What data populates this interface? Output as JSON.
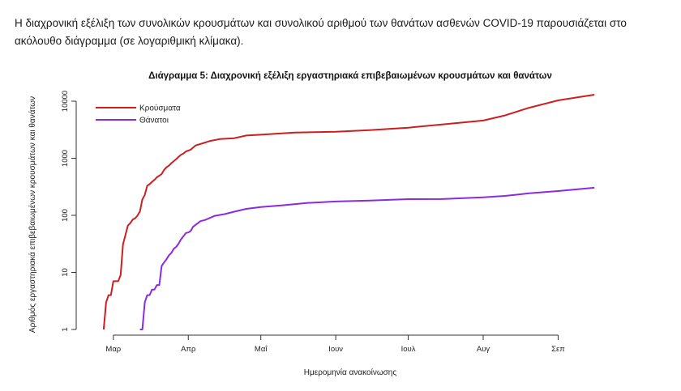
{
  "intro_text": "Η διαχρονική εξέλιξη των συνολικών κρουσμάτων και συνολικού αριθμού των θανάτων ασθενών COVID-19 παρουσιάζεται στο ακόλουθο διάγραμμα (σε λογαριθμική κλίμακα).",
  "colors": {
    "cases": "#cc1f1f",
    "deaths": "#8a2be2",
    "axis": "#333333"
  },
  "chart_data": {
    "type": "line",
    "title": "Διάγραμμα 5: Διαχρονική εξέλιξη εργαστηριακά επιβεβαιωμένων κρουσμάτων και θανάτων",
    "xlabel": "Ημερομηνία ανακοίνωσης",
    "ylabel": "Αριθμός εργαστηριακά επιβεβαιωμένων κρουσμάτων και θανάτων",
    "y_scale": "log",
    "ylim": [
      1,
      10000
    ],
    "y_ticks": [
      1,
      10,
      100,
      1000,
      10000
    ],
    "y_tick_labels": [
      "1",
      "10",
      "100",
      "1000",
      "10000"
    ],
    "x_ticks": [
      "2020-03-01",
      "2020-04-01",
      "2020-05-01",
      "2020-06-01",
      "2020-07-01",
      "2020-08-01",
      "2020-09-01"
    ],
    "x_tick_labels": [
      "Μαρ",
      "Απρ",
      "Μαΐ",
      "Ιουν",
      "Ιουλ",
      "Αυγ",
      "Σεπ"
    ],
    "xlim": [
      "2020-02-20",
      "2020-09-25"
    ],
    "legend_position": "top-left",
    "series": [
      {
        "name": "Κρούσματα",
        "color": "#cc1f1f",
        "points": [
          [
            "2020-02-26",
            1
          ],
          [
            "2020-02-27",
            3
          ],
          [
            "2020-02-28",
            4
          ],
          [
            "2020-02-29",
            4
          ],
          [
            "2020-03-01",
            7
          ],
          [
            "2020-03-03",
            7
          ],
          [
            "2020-03-04",
            9
          ],
          [
            "2020-03-05",
            31
          ],
          [
            "2020-03-06",
            45
          ],
          [
            "2020-03-07",
            66
          ],
          [
            "2020-03-08",
            73
          ],
          [
            "2020-03-09",
            84
          ],
          [
            "2020-03-10",
            89
          ],
          [
            "2020-03-11",
            99
          ],
          [
            "2020-03-12",
            117
          ],
          [
            "2020-03-13",
            190
          ],
          [
            "2020-03-14",
            228
          ],
          [
            "2020-03-15",
            331
          ],
          [
            "2020-03-16",
            352
          ],
          [
            "2020-03-17",
            387
          ],
          [
            "2020-03-18",
            418
          ],
          [
            "2020-03-19",
            464
          ],
          [
            "2020-03-20",
            495
          ],
          [
            "2020-03-21",
            530
          ],
          [
            "2020-03-22",
            624
          ],
          [
            "2020-03-23",
            695
          ],
          [
            "2020-03-24",
            743
          ],
          [
            "2020-03-25",
            821
          ],
          [
            "2020-03-26",
            892
          ],
          [
            "2020-03-27",
            966
          ],
          [
            "2020-03-28",
            1061
          ],
          [
            "2020-03-29",
            1156
          ],
          [
            "2020-03-30",
            1212
          ],
          [
            "2020-03-31",
            1314
          ],
          [
            "2020-04-02",
            1415
          ],
          [
            "2020-04-04",
            1673
          ],
          [
            "2020-04-07",
            1832
          ],
          [
            "2020-04-10",
            2011
          ],
          [
            "2020-04-14",
            2170
          ],
          [
            "2020-04-20",
            2245
          ],
          [
            "2020-04-25",
            2506
          ],
          [
            "2020-05-01",
            2591
          ],
          [
            "2020-05-15",
            2819
          ],
          [
            "2020-06-01",
            2917
          ],
          [
            "2020-06-15",
            3121
          ],
          [
            "2020-07-01",
            3432
          ],
          [
            "2020-07-15",
            3910
          ],
          [
            "2020-08-01",
            4587
          ],
          [
            "2020-08-10",
            5623
          ],
          [
            "2020-08-20",
            7684
          ],
          [
            "2020-09-01",
            10317
          ],
          [
            "2020-09-10",
            11832
          ],
          [
            "2020-09-16",
            13000
          ]
        ]
      },
      {
        "name": "Θάνατοι",
        "color": "#8a2be2",
        "points": [
          [
            "2020-03-12",
            1
          ],
          [
            "2020-03-13",
            1
          ],
          [
            "2020-03-14",
            3
          ],
          [
            "2020-03-15",
            4
          ],
          [
            "2020-03-16",
            4
          ],
          [
            "2020-03-17",
            5
          ],
          [
            "2020-03-18",
            5
          ],
          [
            "2020-03-19",
            6
          ],
          [
            "2020-03-20",
            6
          ],
          [
            "2020-03-21",
            13
          ],
          [
            "2020-03-22",
            15
          ],
          [
            "2020-03-23",
            17
          ],
          [
            "2020-03-24",
            20
          ],
          [
            "2020-03-25",
            22
          ],
          [
            "2020-03-26",
            26
          ],
          [
            "2020-03-27",
            28
          ],
          [
            "2020-03-28",
            32
          ],
          [
            "2020-03-29",
            38
          ],
          [
            "2020-03-30",
            43
          ],
          [
            "2020-03-31",
            49
          ],
          [
            "2020-04-01",
            50
          ],
          [
            "2020-04-02",
            53
          ],
          [
            "2020-04-03",
            63
          ],
          [
            "2020-04-04",
            68
          ],
          [
            "2020-04-05",
            73
          ],
          [
            "2020-04-06",
            79
          ],
          [
            "2020-04-08",
            83
          ],
          [
            "2020-04-12",
            98
          ],
          [
            "2020-04-16",
            105
          ],
          [
            "2020-04-20",
            116
          ],
          [
            "2020-04-25",
            130
          ],
          [
            "2020-05-01",
            140
          ],
          [
            "2020-05-10",
            150
          ],
          [
            "2020-05-20",
            165
          ],
          [
            "2020-06-01",
            175
          ],
          [
            "2020-06-15",
            182
          ],
          [
            "2020-07-01",
            192
          ],
          [
            "2020-07-15",
            193
          ],
          [
            "2020-08-01",
            207
          ],
          [
            "2020-08-10",
            219
          ],
          [
            "2020-08-20",
            243
          ],
          [
            "2020-09-01",
            266
          ],
          [
            "2020-09-16",
            305
          ]
        ]
      }
    ]
  }
}
